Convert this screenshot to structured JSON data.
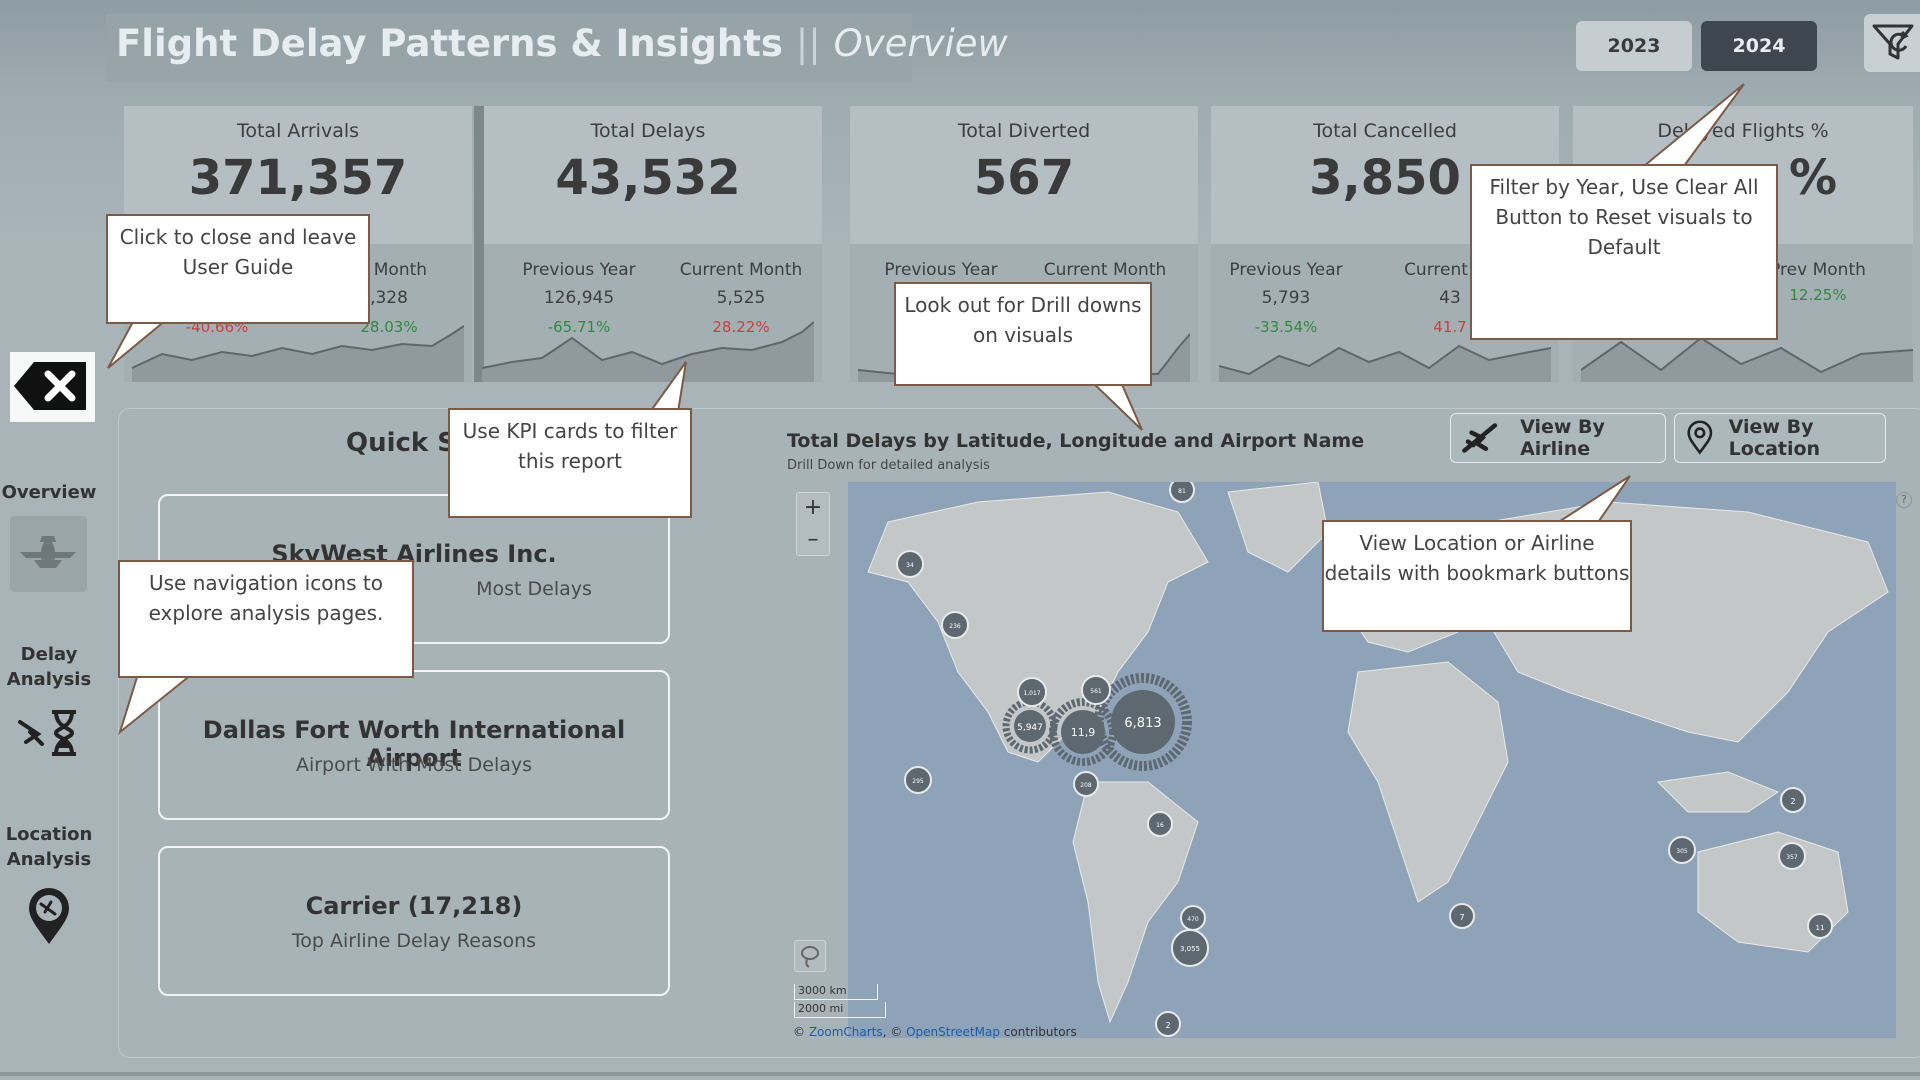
{
  "header": {
    "title": "Flight Delay Patterns & Insights",
    "separator": "||",
    "subtitle": "Overview",
    "years": [
      "2023",
      "2024"
    ],
    "selected_year": "2024"
  },
  "kpis": [
    {
      "label": "Total Arrivals",
      "value": "371,357",
      "prev_label": "",
      "curr_label": "nt Month",
      "prev_value": "",
      "curr_value": ",328",
      "prev_pct": "-40.66%",
      "curr_pct": "28.03%"
    },
    {
      "label": "Total Delays",
      "value": "43,532",
      "prev_label": "Previous Year",
      "curr_label": "Current Month",
      "prev_value": "126,945",
      "curr_value": "5,525",
      "prev_pct": "-65.71%",
      "curr_pct": "28.22%"
    },
    {
      "label": "Total Diverted",
      "value": "567",
      "prev_label": "Previous Year",
      "curr_label": "Current Month",
      "prev_value": "",
      "curr_value": "",
      "prev_pct": "",
      "curr_pct": ""
    },
    {
      "label": "Total Cancelled",
      "value": "3,850",
      "prev_label": "Previous Year",
      "curr_label": "Current",
      "prev_value": "5,793",
      "curr_value": "43",
      "prev_pct": "-33.54%",
      "curr_pct": "41.7"
    },
    {
      "label": "Delayed Flights %",
      "value": "%",
      "prev_label": "h",
      "curr_label": "Prev Month",
      "prev_value": "",
      "curr_value": "",
      "prev_pct": "",
      "curr_pct": "12.25%"
    }
  ],
  "nav": {
    "overview": "Overview",
    "delay_line1": "Delay",
    "delay_line2": "Analysis",
    "location_line1": "Location",
    "location_line2": "Analysis"
  },
  "quick_stats": {
    "title": "Quick St",
    "cards": [
      {
        "main": "SkyWest Airlines Inc.",
        "sub": "Most Delays"
      },
      {
        "main": "Dallas Fort Worth International Airport",
        "sub": "Airport With Most Delays"
      },
      {
        "main": "Carrier (17,218)",
        "sub": "Top Airline Delay Reasons"
      }
    ]
  },
  "map": {
    "title": "Total Delays by Latitude, Longitude and Airport Name",
    "subtitle": "Drill Down for detailed analysis",
    "view_airline": "View By Airline",
    "view_location": "View By Location",
    "zoom_in": "+",
    "zoom_out": "–",
    "help": "?",
    "scale_km": "3000 km",
    "scale_mi": "2000 mi",
    "attribution_prefix": "© ",
    "attribution_zoom": "ZoomCharts",
    "attribution_mid": ", © ",
    "attribution_osm": "OpenStreetMap",
    "attribution_suffix": " contributors",
    "clusters": [
      {
        "label": "6,813"
      },
      {
        "label": "11,9"
      },
      {
        "label": "5,947"
      },
      {
        "label": "1,017"
      },
      {
        "label": "561"
      },
      {
        "label": "81"
      },
      {
        "label": "34"
      },
      {
        "label": "236"
      },
      {
        "label": "295"
      },
      {
        "label": "208"
      },
      {
        "label": "16"
      },
      {
        "label": "470"
      },
      {
        "label": "3,055"
      },
      {
        "label": "2"
      },
      {
        "label": "7"
      },
      {
        "label": "2"
      },
      {
        "label": "305"
      },
      {
        "label": "357"
      },
      {
        "label": "11"
      }
    ]
  },
  "callouts": {
    "close_guide": "Click to close and leave User Guide",
    "filter_year": "Filter by Year, Use Clear All Button to Reset visuals to Default",
    "drill_downs": "Look out for Drill downs on visuals",
    "kpi_filter": "Use KPI cards to filter this report",
    "nav_icons": "Use navigation icons to explore analysis pages.",
    "bookmark": "View Location or Airline details with bookmark buttons"
  },
  "colors": {
    "background": "#a9b4b9",
    "selected_year": "#3e4650",
    "callout_border": "#7d5a46",
    "positive": "#2e8b3e",
    "negative": "#c9403d",
    "map_water": "#8fa3b8",
    "map_land": "#c3c7c8",
    "cluster": "#5d6870"
  }
}
